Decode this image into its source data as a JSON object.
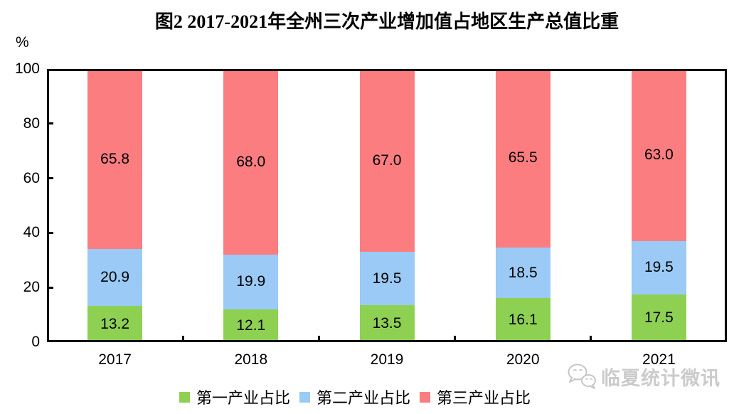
{
  "title": "图2 2017-2021年全州三次产业增加值占地区生产总值比重",
  "watermark": {
    "text": "临夏统计微讯",
    "icon": "wechat-icon"
  },
  "colors": {
    "series_primary": "#8ED152",
    "series_secondary": "#9ACAF5",
    "series_tertiary": "#FC7D80",
    "axis": "#000000",
    "watermark": "#CBCBCB"
  },
  "chart_data": {
    "type": "bar",
    "stacked": true,
    "title": "图2 2017-2021年全州三次产业增加值占地区生产总值比重",
    "categories": [
      "2017",
      "2018",
      "2019",
      "2020",
      "2021"
    ],
    "series": [
      {
        "name": "第一产业占比",
        "color": "#8ED152",
        "values": [
          13.2,
          12.1,
          13.5,
          16.1,
          17.5
        ]
      },
      {
        "name": "第二产业占比",
        "color": "#9ACAF5",
        "values": [
          20.9,
          19.9,
          19.5,
          18.5,
          19.5
        ]
      },
      {
        "name": "第三产业占比",
        "color": "#FC7D80",
        "values": [
          65.8,
          68.0,
          67.0,
          65.5,
          63.0
        ]
      }
    ],
    "xlabel": "",
    "ylabel": "%",
    "ylim": [
      0,
      100
    ],
    "yticks": [
      0,
      20,
      40,
      60,
      80,
      100
    ],
    "grid": false,
    "data_labels": true,
    "data_label_decimals": 1,
    "legend_position": "bottom"
  }
}
